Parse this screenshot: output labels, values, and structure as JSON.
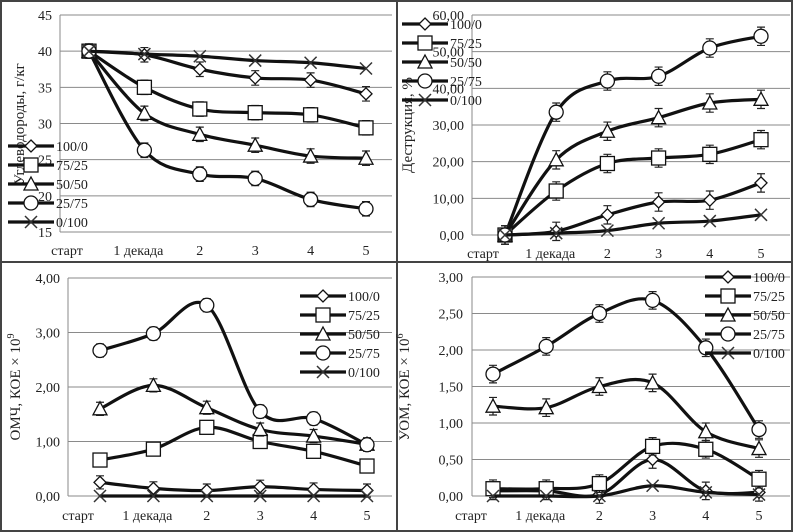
{
  "chart_data": [
    {
      "type": "line",
      "id": "hydrocarbons",
      "ylabel": "Углеводороды, г/кг",
      "ylabel_exp": "",
      "ylim": [
        15,
        45
      ],
      "yticks": [
        "15",
        "20",
        "25",
        "30",
        "35",
        "40",
        "45"
      ],
      "ytick_values": [
        15,
        20,
        25,
        30,
        35,
        40,
        45
      ],
      "categories": [
        "старт",
        "1 декада",
        "2",
        "3",
        "4",
        "5"
      ],
      "legend_position": "left-middle",
      "grid": true,
      "error_bar": 1.0,
      "series": [
        {
          "name": "100/0",
          "marker": "diamond",
          "values": [
            40,
            39.5,
            37.5,
            36.3,
            36.0,
            34.1
          ]
        },
        {
          "name": "75/25",
          "marker": "square",
          "values": [
            40,
            35.0,
            32.0,
            31.5,
            31.2,
            29.4
          ]
        },
        {
          "name": "50/50",
          "marker": "triangle",
          "values": [
            40,
            31.4,
            28.5,
            27.0,
            25.5,
            25.2
          ]
        },
        {
          "name": "25/75",
          "marker": "circle",
          "values": [
            40,
            26.3,
            23.0,
            22.4,
            19.5,
            18.2
          ]
        },
        {
          "name": "0/100",
          "marker": "x",
          "values": [
            40,
            39.6,
            39.3,
            38.7,
            38.4,
            37.6
          ]
        }
      ]
    },
    {
      "type": "line",
      "id": "destruction",
      "ylabel": "Деструкция, %",
      "ylabel_exp": "",
      "ylim": [
        0,
        60
      ],
      "yticks": [
        "0,00",
        "10,00",
        "20,00",
        "30,00",
        "40,00",
        "50,00",
        "60,00"
      ],
      "ytick_values": [
        0,
        10,
        20,
        30,
        40,
        50,
        60
      ],
      "categories": [
        "старт",
        "1 декада",
        "2",
        "3",
        "4",
        "5"
      ],
      "legend_position": "top-left",
      "grid": true,
      "error_bar": 2.5,
      "series": [
        {
          "name": "100/0",
          "marker": "diamond",
          "values": [
            0,
            1.0,
            5.5,
            9.0,
            9.5,
            14.2
          ]
        },
        {
          "name": "75/25",
          "marker": "square",
          "values": [
            0,
            12.0,
            19.5,
            21.0,
            22.0,
            26.0
          ]
        },
        {
          "name": "50/50",
          "marker": "triangle",
          "values": [
            0,
            20.5,
            28.3,
            32.0,
            36.0,
            37.0
          ]
        },
        {
          "name": "25/75",
          "marker": "circle",
          "values": [
            0,
            33.5,
            42.0,
            43.3,
            51.0,
            54.2
          ]
        },
        {
          "name": "0/100",
          "marker": "x",
          "values": [
            0,
            0.5,
            1.2,
            3.2,
            3.8,
            5.5
          ]
        }
      ]
    },
    {
      "type": "line",
      "id": "omch",
      "ylabel": "ОМЧ, КОЕ × 10",
      "ylabel_exp": "9",
      "ylim": [
        0,
        4
      ],
      "yticks": [
        "0,00",
        "1,00",
        "2,00",
        "3,00",
        "4,00"
      ],
      "ytick_values": [
        0,
        1,
        2,
        3,
        4
      ],
      "categories": [
        "старт",
        "1 декада",
        "2",
        "3",
        "4",
        "5"
      ],
      "legend_position": "top-right",
      "grid": true,
      "error_bar": 0.12,
      "series": [
        {
          "name": "100/0",
          "marker": "diamond",
          "values": [
            0.25,
            0.14,
            0.1,
            0.17,
            0.12,
            0.1
          ]
        },
        {
          "name": "75/25",
          "marker": "square",
          "values": [
            0.66,
            0.86,
            1.26,
            1.0,
            0.82,
            0.55
          ]
        },
        {
          "name": "50/50",
          "marker": "triangle",
          "values": [
            1.6,
            2.03,
            1.62,
            1.22,
            1.1,
            0.95
          ]
        },
        {
          "name": "25/75",
          "marker": "circle",
          "values": [
            2.67,
            2.98,
            3.5,
            1.55,
            1.42,
            0.94
          ]
        },
        {
          "name": "0/100",
          "marker": "x",
          "values": [
            0,
            0,
            0,
            0,
            0,
            0
          ]
        }
      ]
    },
    {
      "type": "line",
      "id": "uom",
      "ylabel": "УОМ, КОЕ × 10",
      "ylabel_exp": "6",
      "ylim": [
        0,
        3
      ],
      "yticks": [
        "0,00",
        "0,50",
        "1,00",
        "1,50",
        "2,00",
        "2,50",
        "3,00"
      ],
      "ytick_values": [
        0,
        0.5,
        1,
        1.5,
        2,
        2.5,
        3
      ],
      "categories": [
        "старт",
        "1 декада",
        "2",
        "3",
        "4",
        "5"
      ],
      "legend_position": "top-right",
      "grid": true,
      "error_bar": 0.12,
      "series": [
        {
          "name": "100/0",
          "marker": "diamond",
          "values": [
            0.07,
            0.07,
            0.02,
            0.5,
            0.07,
            0.05
          ]
        },
        {
          "name": "75/25",
          "marker": "square",
          "values": [
            0.1,
            0.1,
            0.17,
            0.68,
            0.64,
            0.23
          ]
        },
        {
          "name": "50/50",
          "marker": "triangle",
          "values": [
            1.23,
            1.21,
            1.5,
            1.55,
            0.88,
            0.65
          ]
        },
        {
          "name": "25/75",
          "marker": "circle",
          "values": [
            1.67,
            2.05,
            2.5,
            2.68,
            2.03,
            0.91
          ]
        },
        {
          "name": "0/100",
          "marker": "x",
          "values": [
            0,
            0,
            0,
            0.14,
            0.05,
            0.02
          ]
        }
      ]
    }
  ]
}
